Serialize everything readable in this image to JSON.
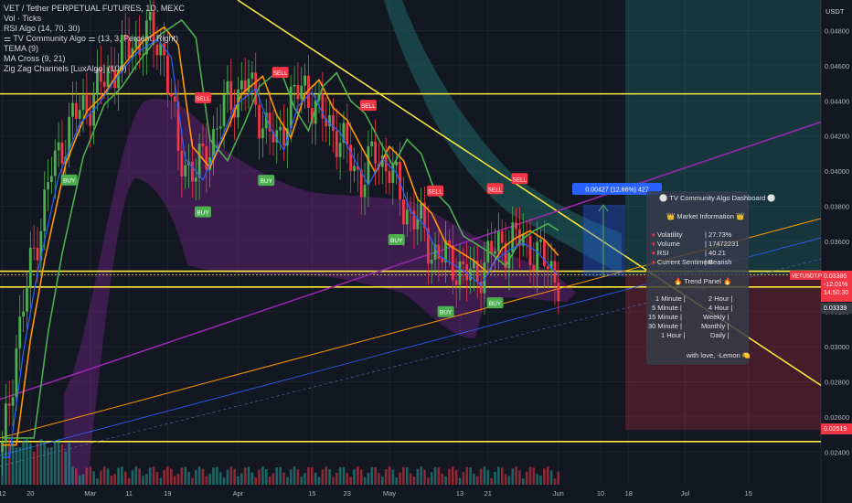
{
  "header": {
    "title": "VET / Tether PERPETUAL FUTURES, 1D, MEXC",
    "currency": "USDT"
  },
  "indicators": [
    "Vol · Ticks",
    "RSI Algo (14, 70, 30)",
    "⚌ TV Community Algo ⚌ (13, 3, Percent, Right)",
    "TEMA (9)",
    "MA Cross (9, 21)",
    "Zig Zag Channels [LuxAlgo] (100)"
  ],
  "chart_data": {
    "type": "candlestick",
    "symbol": "VETUSDT.P",
    "y_ticks": [
      "0.04800",
      "0.04600",
      "0.04400",
      "0.04200",
      "0.04000",
      "0.03800",
      "0.03600",
      "0.03400",
      "0.03200",
      "0.03000",
      "0.02800",
      "0.02600",
      "0.02400"
    ],
    "x_ticks": [
      "12",
      "20",
      "Mar",
      "11",
      "19",
      "Apr",
      "15",
      "23",
      "May",
      "13",
      "21",
      "Jun",
      "10",
      "18",
      "Jul",
      "15"
    ],
    "price_labels": {
      "last": "0.03386",
      "change": "-12.01%",
      "countdown": "14:50:30",
      "target_low": "0.03339",
      "stop": "0.02519"
    },
    "measure_label": "0.00427 (12.66%) 427",
    "signals": [
      {
        "label": "SELL",
        "day": 57
      },
      {
        "label": "SELL",
        "day": 79
      },
      {
        "label": "SELL",
        "day": 104
      },
      {
        "label": "SELL",
        "day": 123
      },
      {
        "label": "SELL",
        "day": 140
      },
      {
        "label": "SELL",
        "day": 147
      },
      {
        "label": "BUY",
        "day": 19
      },
      {
        "label": "BUY",
        "day": 57
      },
      {
        "label": "BUY",
        "day": 75
      },
      {
        "label": "BUY",
        "day": 112
      },
      {
        "label": "BUY",
        "day": 126
      },
      {
        "label": "BUY",
        "day": 140
      }
    ],
    "horizontal_levels": [
      0.0444,
      0.0343,
      0.0334,
      0.0246
    ],
    "ylim": [
      0.0232,
      0.0502
    ]
  },
  "dashboard": {
    "title": "⚪ TV Community Algo Dashboard ⚪",
    "market_header": "👑 Market Information 👑",
    "volatility_label": "Volatility",
    "volatility_value": "| 27.73%",
    "volume_label": "Volume",
    "volume_value": "| 17472231",
    "rsi_label": "RSI",
    "rsi_value": "| 40.21",
    "sentiment_label": "Current Sentiment",
    "sentiment_value": "| Bearish",
    "trend_header": "🔥 Trend Panel 🔥",
    "trend_rows": [
      {
        "l": "1 Minute |",
        "r": "2 Hour |"
      },
      {
        "l": "5 Minute |",
        "r": "4 Hour |"
      },
      {
        "l": "15 Minute |",
        "r": "Weekly |"
      },
      {
        "l": "30 Minute |",
        "r": "Monthly |"
      },
      {
        "l": "1 Hour |",
        "r": "Daily |"
      }
    ],
    "footer": "with love, -Lemon 🍋"
  },
  "colors": {
    "bg": "#131722",
    "bull": "#26a69a",
    "bull_candle": "#4caf50",
    "bear": "#f23645",
    "yellow": "#ffeb3b",
    "purple": "#9c27b0",
    "orange": "#ff9800",
    "green_line": "#4caf50",
    "blue": "#2962ff",
    "buy_tag": "#4caf50",
    "sell_tag": "#f23645"
  }
}
